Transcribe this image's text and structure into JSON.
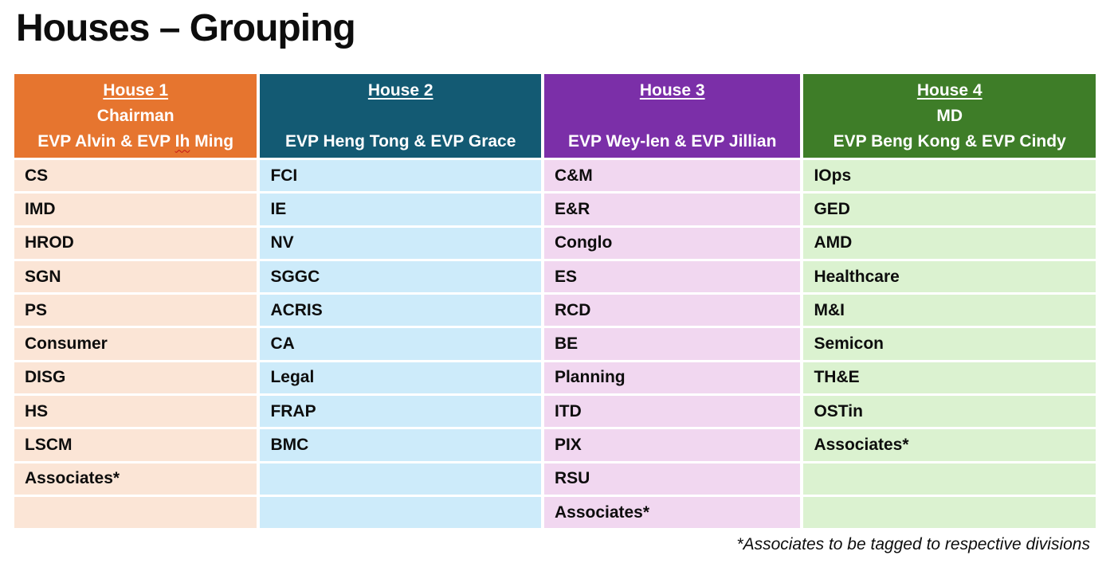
{
  "page": {
    "title": "Houses – Grouping",
    "footnote": "*Associates to be tagged to respective divisions"
  },
  "houses": [
    {
      "name": "House 1",
      "role": "Chairman",
      "leads": "EVP Alvin & EVP Ih Ming",
      "leads_parts": {
        "pre": "EVP Alvin & EVP ",
        "misspelled": "Ih",
        "post": " Ming"
      },
      "header_color": "#E6752F",
      "body_color": "#FBE5D6",
      "items": [
        "CS",
        "IMD",
        "HROD",
        "SGN",
        "PS",
        "Consumer",
        "DISG",
        "HS",
        "LSCM",
        "Associates*",
        ""
      ]
    },
    {
      "name": "House 2",
      "role": "",
      "leads": "EVP Heng Tong & EVP Grace",
      "leads_parts": {
        "pre": "EVP Heng Tong & EVP Grace",
        "misspelled": "",
        "post": ""
      },
      "header_color": "#135A73",
      "body_color": "#CDEBFA",
      "items": [
        "FCI",
        "IE",
        "NV",
        "SGGC",
        "ACRIS",
        "CA",
        "Legal",
        "FRAP",
        "BMC",
        "",
        ""
      ]
    },
    {
      "name": "House 3",
      "role": "",
      "leads": "EVP Wey-len & EVP Jillian",
      "leads_parts": {
        "pre": "EVP Wey-len & EVP Jillian",
        "misspelled": "",
        "post": ""
      },
      "header_color": "#7B2FA8",
      "body_color": "#F1D7F0",
      "items": [
        "C&M",
        "E&R",
        "Conglo",
        "ES",
        "RCD",
        "BE",
        "Planning",
        "ITD",
        "PIX",
        "RSU",
        "Associates*"
      ]
    },
    {
      "name": "House 4",
      "role": "MD",
      "leads": "EVP Beng Kong & EVP Cindy",
      "leads_parts": {
        "pre": "EVP Beng Kong & EVP Cindy",
        "misspelled": "",
        "post": ""
      },
      "header_color": "#3E7D28",
      "body_color": "#DBF2D0",
      "items": [
        "IOps",
        "GED",
        "AMD",
        "Healthcare",
        "M&I",
        "Semicon",
        "TH&E",
        "OSTin",
        "Associates*",
        "",
        ""
      ]
    }
  ]
}
